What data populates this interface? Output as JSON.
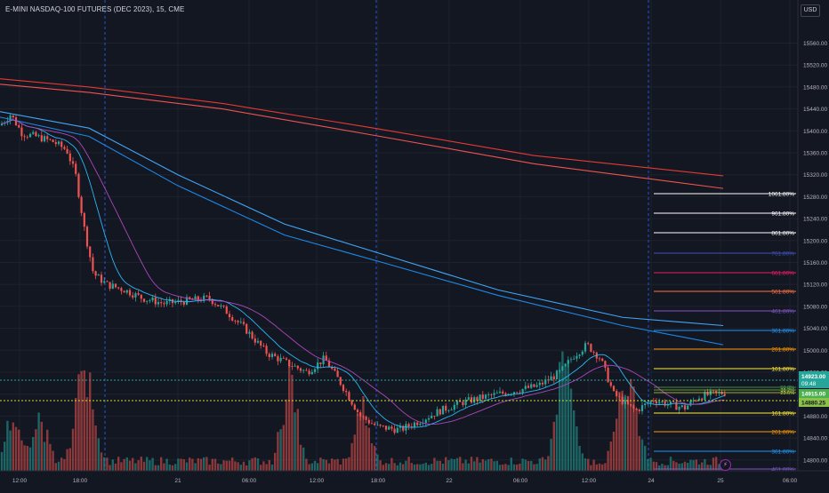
{
  "header": {
    "title": "E-MINI NASDAQ-100 FUTURES (DEC 2023), 15, CME",
    "currency_button": "USD"
  },
  "chart_data": {
    "type": "candlestick",
    "symbol": "E-MINI NASDAQ-100 FUTURES (DEC 2023)",
    "interval": "15",
    "exchange": "CME",
    "ylim": [
      14740,
      15580
    ],
    "y_ticks": [
      15560,
      15520,
      15480,
      15440,
      15400,
      15360,
      15320,
      15280,
      15240,
      15200,
      15160,
      15120,
      15080,
      15040,
      15000,
      14960,
      14920,
      14880,
      14840,
      14800,
      14760
    ],
    "x_ticks": [
      "12:00",
      "18:00",
      "21",
      "06:00",
      "12:00",
      "18:00",
      "22",
      "06:00",
      "12:00",
      "24",
      "25",
      "06:00"
    ],
    "price_labels": {
      "last": {
        "value": "14923.00",
        "countdown": "09:48",
        "color": "#26a69a"
      },
      "level_a": {
        "value": "14915.00",
        "color": "#4caf50"
      },
      "level_b": {
        "value": "14880.25",
        "color": "#8bc34a"
      }
    },
    "fib_extensions_up": [
      {
        "label": "1061.80%",
        "color": "#ffffff"
      },
      {
        "label": "961.80%",
        "color": "#ffffff"
      },
      {
        "label": "861.80%",
        "color": "#ffffff"
      },
      {
        "label": "761.80%",
        "color": "#3f51b5"
      },
      {
        "label": "661.80%",
        "color": "#e91e63"
      },
      {
        "label": "561.80%",
        "color": "#ff7043"
      },
      {
        "label": "461.80%",
        "color": "#7e57c2"
      },
      {
        "label": "361.80%",
        "color": "#2196f3"
      },
      {
        "label": "261.80%",
        "color": "#ff9800"
      },
      {
        "label": "161.80%",
        "color": "#ffeb3b"
      }
    ],
    "fib_extensions_down": [
      {
        "label": "161.80%",
        "color": "#ffeb3b"
      },
      {
        "label": "261.80%",
        "color": "#ff9800"
      },
      {
        "label": "361.80%",
        "color": "#2196f3"
      },
      {
        "label": "461.80%",
        "color": "#7e57c2"
      }
    ],
    "fib_small_labels": [
      "50.0%",
      "38.2%",
      "23.6%"
    ],
    "colors": {
      "up": "#26a69a",
      "down": "#ef5350",
      "grid": "#1e222d",
      "session": "#2962ff"
    }
  },
  "icons": {
    "alert": "lightning-icon"
  }
}
